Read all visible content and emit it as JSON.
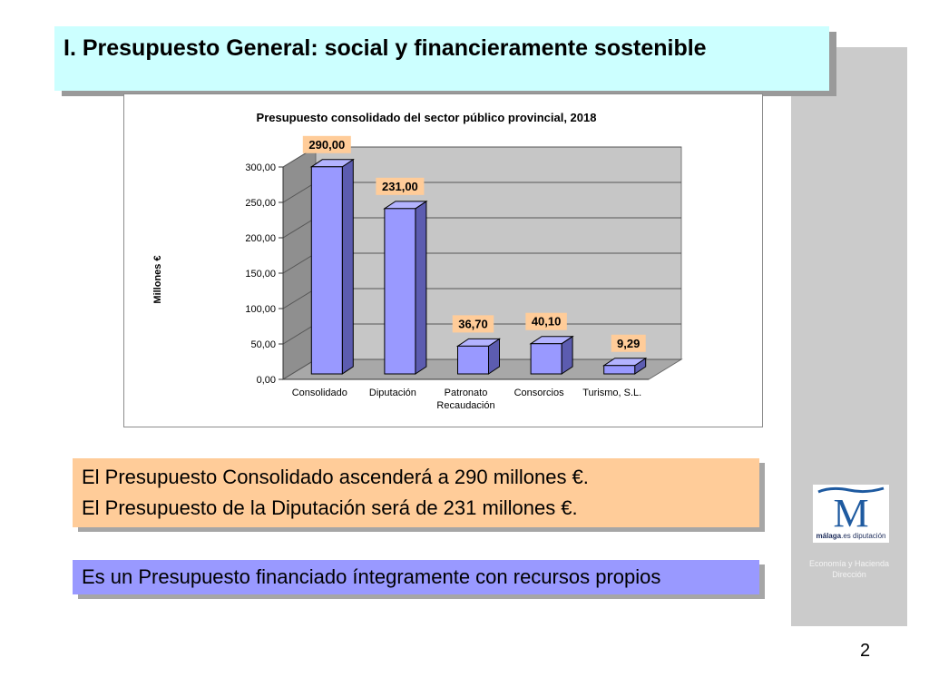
{
  "slide": {
    "title": "I. Presupuesto General: social y financieramente sostenible",
    "page_number": "2"
  },
  "info_box": {
    "line1": "El Presupuesto Consolidado ascenderá a 290 millones €.",
    "line2": "El Presupuesto de la Diputación será de 231 millones €."
  },
  "note_box": {
    "text": "Es un Presupuesto financiado íntegramente con recursos propios"
  },
  "sidebar": {
    "logo_brand": "málaga",
    "logo_suffix": ".es diputación",
    "dept_line1": "Economía y Hacienda",
    "dept_line2": "Dirección"
  },
  "colors": {
    "title_bg": "#ccffff",
    "bar_fill": "#9999ff",
    "label_bg": "#ffcc99",
    "info_bg": "#ffcc99",
    "note_bg": "#9999ff",
    "sidebar_bg": "#cbcbcb"
  },
  "chart_data": {
    "type": "bar",
    "style": "3d-column",
    "title": "Presupuesto consolidado del sector público provincial, 2018",
    "ylabel": "Millones €",
    "xlabel": "",
    "categories": [
      "Consolidado",
      "Diputación",
      "Patronato Recaudación",
      "Consorcios",
      "Turismo, S.L."
    ],
    "values": [
      290.0,
      231.0,
      36.7,
      40.1,
      9.29
    ],
    "data_labels": [
      "290,00",
      "231,00",
      "36,70",
      "40,10",
      "9,29"
    ],
    "ylim": [
      0,
      300
    ],
    "yticks": [
      "0,00",
      "50,00",
      "100,00",
      "150,00",
      "200,00",
      "250,00",
      "300,00"
    ],
    "grid": true,
    "legend": "none"
  }
}
